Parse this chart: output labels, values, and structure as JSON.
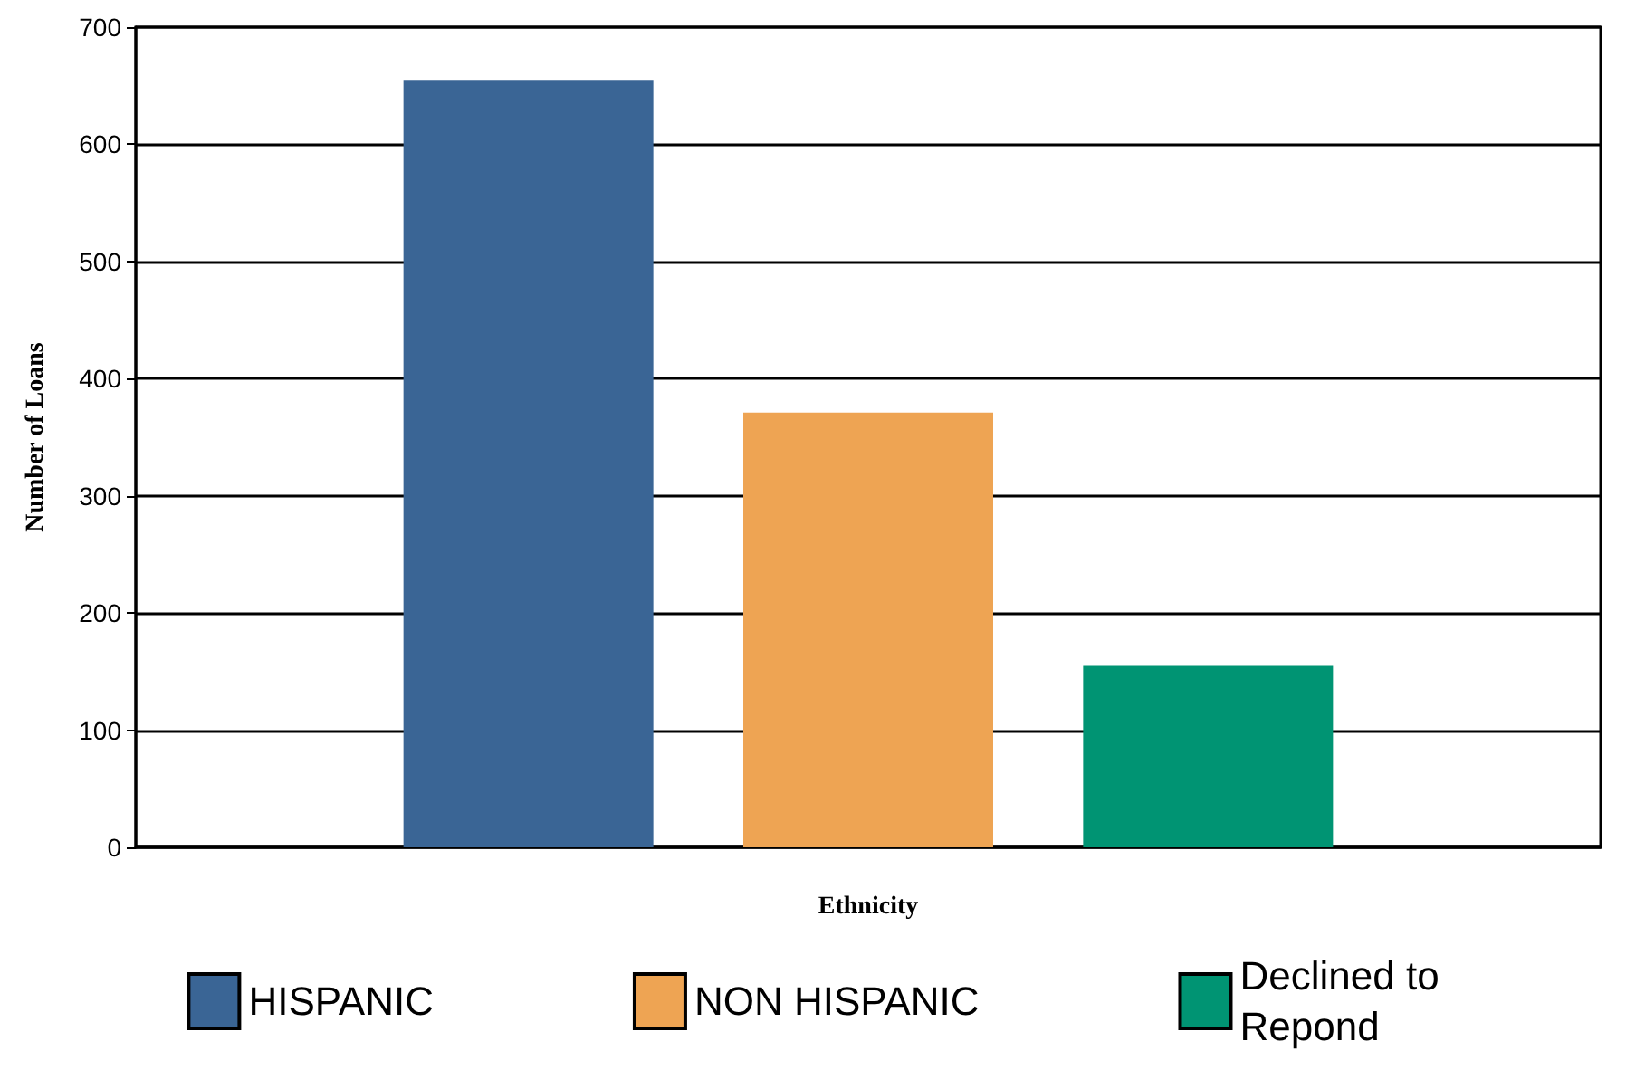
{
  "chart_data": {
    "type": "bar",
    "xlabel": "Ethnicity",
    "ylabel": "Number of Loans",
    "categories": [
      null
    ],
    "series": [
      {
        "name": "HISPANIC",
        "color": "#3a6595",
        "values": [
          655
        ]
      },
      {
        "name": "NON HISPANIC",
        "color": "#eea453",
        "values": [
          371
        ]
      },
      {
        "name": "Declined to\nRepond",
        "color": "#009473",
        "values": [
          155
        ]
      }
    ],
    "ylim": [
      0,
      700
    ],
    "yticks": [
      0,
      100,
      200,
      300,
      400,
      500,
      600,
      700
    ],
    "grid": "y",
    "legend": "bottom"
  }
}
